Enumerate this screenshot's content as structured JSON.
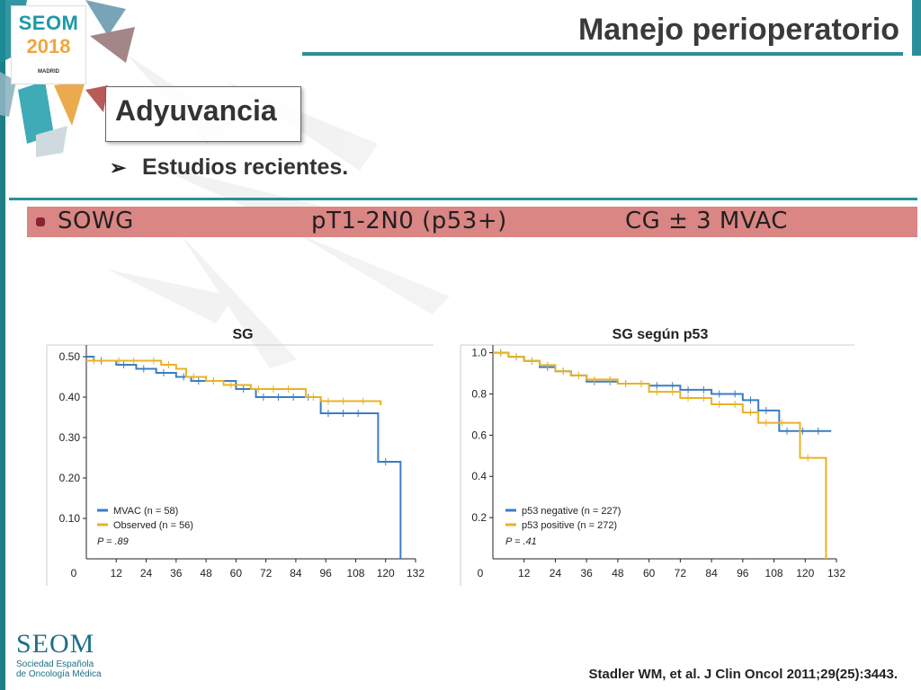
{
  "header": {
    "title": "Manejo perioperatorio",
    "logo_seom": "SEOM",
    "logo_year": "2018",
    "logo_city": "MADRID"
  },
  "section": {
    "label": "Adyuvancia",
    "bullet": "Estudios recientes."
  },
  "banner": {
    "study": "SOWG",
    "stage": "pT1-2N0 (p53+)",
    "treatment": "CG ± 3 MVAC"
  },
  "colors": {
    "blue": "#3b7dc4",
    "gold": "#e8b326",
    "teal": "#2a8f9a",
    "banner": "#d98684"
  },
  "chart_data": [
    {
      "type": "line",
      "title": "SG",
      "x_ticks": [
        "0",
        "12",
        "24",
        "36",
        "48",
        "60",
        "72",
        "84",
        "96",
        "108",
        "120",
        "132"
      ],
      "y_ticks": [
        "0.10",
        "0.20",
        "0.30",
        "0.40",
        "0.50"
      ],
      "xlim": [
        0,
        132
      ],
      "ylim": [
        0,
        0.52
      ],
      "series": [
        {
          "name": "MVAC (n = 58)",
          "color": "#3b7dc4",
          "points": [
            [
              0,
              0.5
            ],
            [
              3,
              0.49
            ],
            [
              12,
              0.48
            ],
            [
              20,
              0.47
            ],
            [
              28,
              0.46
            ],
            [
              36,
              0.45
            ],
            [
              42,
              0.44
            ],
            [
              56,
              0.44
            ],
            [
              60,
              0.42
            ],
            [
              66,
              0.42
            ],
            [
              68,
              0.4
            ],
            [
              92,
              0.4
            ],
            [
              94,
              0.36
            ],
            [
              117,
              0.36
            ],
            [
              117,
              0.24
            ],
            [
              126,
              0.24
            ],
            [
              126,
              0.0
            ]
          ]
        },
        {
          "name": "Observed (n = 56)",
          "color": "#e8b326",
          "points": [
            [
              0,
              0.49
            ],
            [
              10,
              0.49
            ],
            [
              24,
              0.49
            ],
            [
              30,
              0.48
            ],
            [
              36,
              0.47
            ],
            [
              40,
              0.45
            ],
            [
              48,
              0.44
            ],
            [
              55,
              0.43
            ],
            [
              66,
              0.42
            ],
            [
              84,
              0.42
            ],
            [
              88,
              0.4
            ],
            [
              94,
              0.39
            ],
            [
              108,
              0.39
            ],
            [
              118,
              0.38
            ],
            [
              118,
              0.39
            ]
          ]
        }
      ],
      "p_value": "P = .89"
    },
    {
      "type": "line",
      "title": "SG según p53",
      "x_ticks": [
        "0",
        "12",
        "24",
        "36",
        "48",
        "60",
        "72",
        "84",
        "96",
        "108",
        "120",
        "132"
      ],
      "y_ticks": [
        "0.2",
        "0.4",
        "0.6",
        "0.8",
        "1.0"
      ],
      "xlim": [
        0,
        132
      ],
      "ylim": [
        0,
        1.02
      ],
      "series": [
        {
          "name": "p53 negative (n = 227)",
          "color": "#3b7dc4",
          "points": [
            [
              0,
              1.0
            ],
            [
              6,
              0.98
            ],
            [
              12,
              0.96
            ],
            [
              18,
              0.93
            ],
            [
              24,
              0.91
            ],
            [
              30,
              0.89
            ],
            [
              36,
              0.86
            ],
            [
              48,
              0.85
            ],
            [
              60,
              0.84
            ],
            [
              72,
              0.82
            ],
            [
              84,
              0.8
            ],
            [
              96,
              0.77
            ],
            [
              102,
              0.72
            ],
            [
              108,
              0.72
            ],
            [
              110,
              0.62
            ],
            [
              130,
              0.62
            ]
          ]
        },
        {
          "name": "p53 positive (n = 272)",
          "color": "#e8b326",
          "points": [
            [
              0,
              1.0
            ],
            [
              6,
              0.98
            ],
            [
              12,
              0.96
            ],
            [
              18,
              0.94
            ],
            [
              24,
              0.91
            ],
            [
              30,
              0.89
            ],
            [
              36,
              0.87
            ],
            [
              48,
              0.85
            ],
            [
              60,
              0.81
            ],
            [
              72,
              0.78
            ],
            [
              84,
              0.75
            ],
            [
              96,
              0.71
            ],
            [
              102,
              0.66
            ],
            [
              108,
              0.66
            ],
            [
              118,
              0.66
            ],
            [
              118,
              0.49
            ],
            [
              128,
              0.49
            ],
            [
              128,
              0.0
            ]
          ]
        }
      ],
      "p_value": "P = .41"
    }
  ],
  "footer": {
    "logo_name": "SEOM",
    "logo_line1": "Sociedad Española",
    "logo_line2": "de Oncología Médica",
    "citation": "Stadler WM, et al. J Clin Oncol 2011;29(25):3443."
  }
}
